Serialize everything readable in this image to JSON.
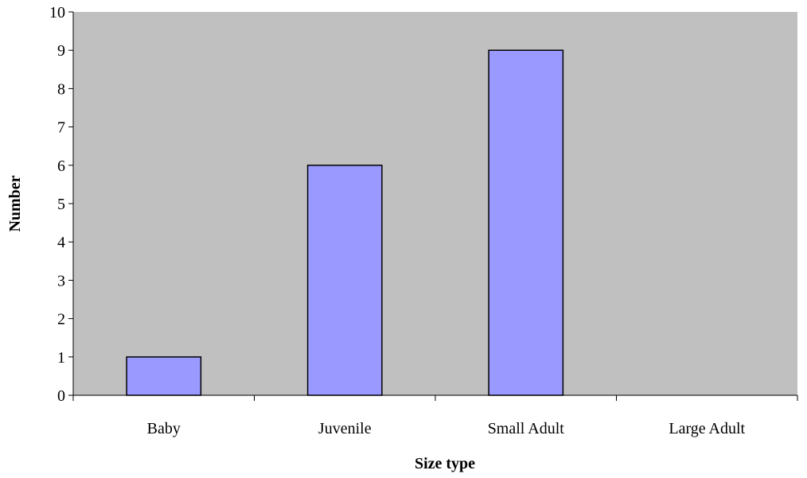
{
  "chart_data": {
    "type": "bar",
    "title": "",
    "xlabel": "Size type",
    "ylabel": "Number",
    "categories": [
      "Baby",
      "Juvenile",
      "Small Adult",
      "Large Adult"
    ],
    "values": [
      1,
      6,
      9,
      0
    ],
    "ylim": [
      0,
      10
    ],
    "yticks": [
      "0",
      "1",
      "2",
      "3",
      "4",
      "5",
      "6",
      "7",
      "8",
      "9",
      "10"
    ],
    "grid": false,
    "legend": "none"
  },
  "colors": {
    "plot_background": "#c0c0c0",
    "bar_fill": "#9999ff",
    "bar_stroke": "#000000",
    "axis": "#000000"
  }
}
